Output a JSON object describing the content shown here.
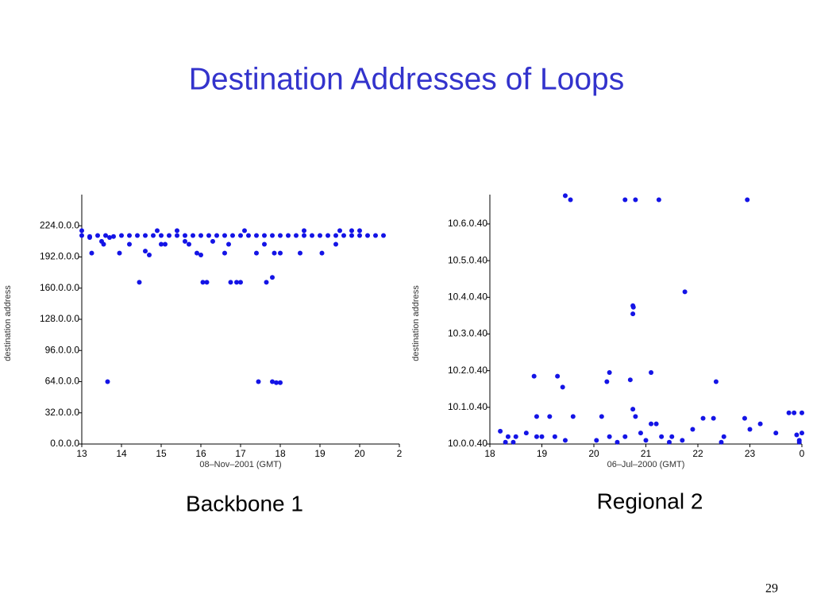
{
  "title": "Destination Addresses of Loops",
  "page_number": "29",
  "chart_data": [
    {
      "type": "scatter",
      "caption": "Backbone 1",
      "xlabel": "08–Nov–2001 (GMT)",
      "ylabel": "destination address",
      "color": "#1414e6",
      "xlim": [
        13,
        21
      ],
      "ylim": [
        0,
        256
      ],
      "xticks": [
        13,
        14,
        15,
        16,
        17,
        18,
        19,
        20,
        {
          "value": 21,
          "label": "2"
        }
      ],
      "yticks": [
        {
          "value": 0,
          "label": "0.0.0.0"
        },
        {
          "value": 32,
          "label": "32.0.0.0"
        },
        {
          "value": 64,
          "label": "64.0.0.0"
        },
        {
          "value": 96,
          "label": "96.0.0.0"
        },
        {
          "value": 128,
          "label": "128.0.0.0"
        },
        {
          "value": 160,
          "label": "160.0.0.0"
        },
        {
          "value": 192,
          "label": "192.0.0.0"
        },
        {
          "value": 224,
          "label": "224.0.0.0"
        }
      ],
      "x": [
        13.0,
        13.2,
        13.4,
        13.6,
        13.8,
        14.0,
        14.2,
        14.4,
        14.6,
        14.8,
        15.0,
        15.2,
        15.4,
        15.6,
        15.8,
        16.0,
        16.2,
        16.4,
        16.6,
        16.8,
        17.0,
        17.2,
        17.4,
        17.6,
        17.8,
        18.0,
        18.2,
        18.4,
        18.6,
        18.8,
        19.0,
        19.2,
        19.4,
        19.6,
        19.8,
        20.0,
        20.2,
        20.4,
        20.6,
        13.0,
        13.2,
        13.25,
        13.5,
        13.55,
        13.7,
        13.95,
        14.2,
        14.45,
        14.6,
        14.7,
        14.9,
        15.0,
        15.1,
        15.4,
        15.6,
        15.7,
        15.9,
        16.0,
        16.05,
        16.15,
        16.3,
        16.6,
        16.7,
        16.75,
        16.9,
        17.0,
        17.1,
        17.4,
        17.45,
        17.6,
        17.65,
        17.8,
        17.8,
        17.85,
        17.9,
        18.0,
        18.5,
        18.6,
        19.05,
        19.4,
        19.5,
        13.65,
        18.0,
        19.8,
        20.0
      ],
      "y": [
        214,
        213,
        214,
        214,
        213,
        214,
        214,
        214,
        214,
        214,
        214,
        214,
        214,
        214,
        214,
        214,
        214,
        214,
        214,
        214,
        214,
        214,
        214,
        214,
        214,
        214,
        214,
        214,
        214,
        214,
        214,
        214,
        214,
        214,
        214,
        214,
        214,
        214,
        214,
        219,
        212,
        196,
        208,
        205,
        212,
        196,
        205,
        166,
        198,
        194,
        219,
        205,
        205,
        219,
        208,
        205,
        196,
        194,
        166,
        166,
        208,
        196,
        205,
        166,
        166,
        166,
        219,
        196,
        64,
        205,
        166,
        171,
        64,
        196,
        63,
        63,
        196,
        219,
        196,
        205,
        219,
        64,
        196,
        219,
        219
      ]
    },
    {
      "type": "scatter",
      "caption": "Regional 2",
      "xlabel": "06–Jul–2000 (GMT)",
      "ylabel": "destination address",
      "color": "#1414e6",
      "xlim": [
        18,
        24
      ],
      "ylim": [
        0,
        6.8
      ],
      "xticks": [
        18,
        19,
        20,
        21,
        22,
        23,
        {
          "value": 24,
          "label": "0"
        }
      ],
      "yticks": [
        {
          "value": 0,
          "label": "10.0.0.40"
        },
        {
          "value": 1,
          "label": "10.1.0.40"
        },
        {
          "value": 2,
          "label": "10.2.0.40"
        },
        {
          "value": 3,
          "label": "10.3.0.40"
        },
        {
          "value": 4,
          "label": "10.4.0.40"
        },
        {
          "value": 5,
          "label": "10.5.0.40"
        },
        {
          "value": 6,
          "label": "10.6.0.40"
        }
      ],
      "x": [
        19.45,
        19.55,
        20.6,
        20.8,
        21.25,
        22.95,
        21.75,
        20.75,
        20.76,
        20.75,
        18.85,
        19.3,
        19.4,
        20.25,
        20.3,
        20.7,
        21.1,
        22.35,
        20.75,
        18.9,
        19.15,
        19.6,
        20.15,
        20.8,
        21.1,
        21.2,
        18.2,
        18.35,
        18.5,
        18.7,
        18.9,
        19.25,
        19.45,
        19.0,
        20.05,
        20.3,
        20.6,
        20.9,
        21.0,
        21.3,
        21.5,
        21.7,
        21.9,
        22.1,
        22.3,
        22.5,
        22.9,
        23.0,
        23.2,
        23.5,
        23.75,
        23.85,
        23.9,
        24.0,
        23.95,
        24.0,
        18.3,
        18.45,
        20.45,
        21.45,
        22.45,
        23.95
      ],
      "y": [
        6.77,
        6.66,
        6.66,
        6.66,
        6.66,
        6.66,
        4.15,
        3.77,
        3.73,
        3.55,
        1.85,
        1.85,
        1.55,
        1.7,
        1.95,
        1.75,
        1.95,
        1.7,
        0.95,
        0.75,
        0.75,
        0.75,
        0.75,
        0.75,
        0.55,
        0.55,
        0.35,
        0.2,
        0.2,
        0.3,
        0.2,
        0.2,
        0.1,
        0.2,
        0.1,
        0.2,
        0.2,
        0.3,
        0.1,
        0.2,
        0.2,
        0.1,
        0.4,
        0.7,
        0.7,
        0.2,
        0.7,
        0.4,
        0.55,
        0.3,
        0.85,
        0.85,
        0.25,
        0.85,
        0.1,
        0.3,
        0.05,
        0.05,
        0.05,
        0.05,
        0.05,
        0.05
      ]
    }
  ]
}
